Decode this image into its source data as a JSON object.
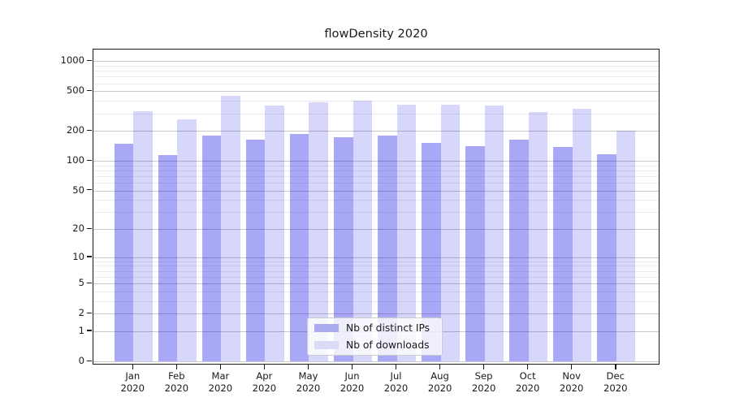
{
  "chart_data": {
    "type": "bar",
    "title": "flowDensity 2020",
    "categories": [
      "Jan",
      "Feb",
      "Mar",
      "Apr",
      "May",
      "Jun",
      "Jul",
      "Aug",
      "Sep",
      "Oct",
      "Nov",
      "Dec"
    ],
    "year_label": "2020",
    "series": [
      {
        "name": "Nb of distinct IPs",
        "fill_color": "rgba(0,0,230,0.34)",
        "legend_color": "#aaaaee",
        "values": [
          150,
          115,
          180,
          163,
          185,
          172,
          181,
          152,
          141,
          164,
          139,
          117
        ]
      },
      {
        "name": "Nb of downloads",
        "fill_color": "rgba(0,0,230,0.155)",
        "legend_color": "#dbdbf8",
        "values": [
          318,
          263,
          453,
          358,
          391,
          406,
          368,
          365,
          358,
          310,
          334,
          200
        ]
      }
    ],
    "y_scale": "symlog",
    "y_ticks": [
      0,
      1,
      2,
      5,
      10,
      20,
      50,
      100,
      200,
      500,
      1000
    ],
    "y_minor_ticks": [
      3,
      4,
      6,
      7,
      8,
      9,
      30,
      40,
      60,
      70,
      80,
      90,
      300,
      400,
      600,
      700,
      800,
      900
    ],
    "ylim": [
      0,
      1300
    ],
    "grid": true,
    "legend_position": "lower center"
  }
}
